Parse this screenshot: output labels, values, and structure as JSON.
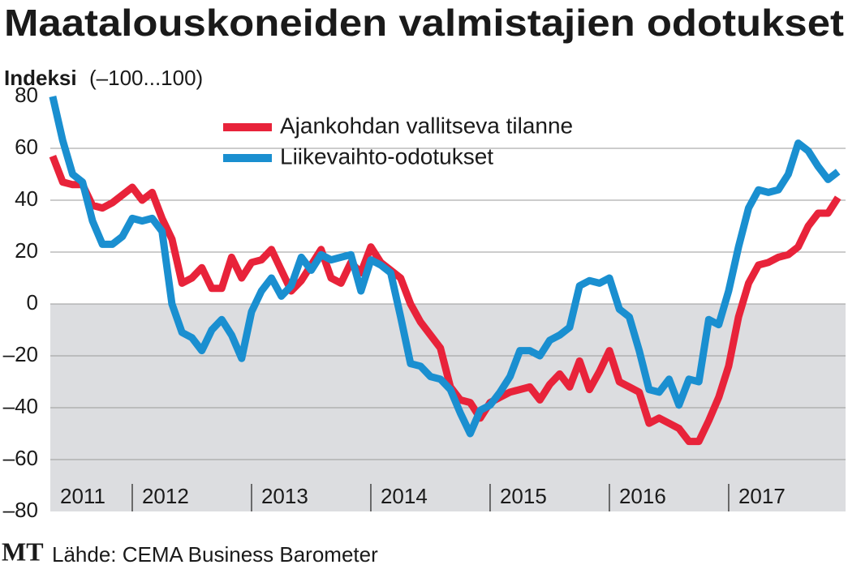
{
  "chart_data": {
    "type": "line",
    "title": "Maatalouskoneiden valmistajien odotukset",
    "y_label": "Indeksi",
    "y_label_note": "(–100...100)",
    "source": "Lähde: CEMA Business Barometer",
    "logo": "MT",
    "x": [
      2011.333,
      2011.417,
      2011.5,
      2011.583,
      2011.667,
      2011.75,
      2011.833,
      2011.917,
      2012,
      2012.083,
      2012.167,
      2012.25,
      2012.333,
      2012.417,
      2012.5,
      2012.583,
      2012.667,
      2012.75,
      2012.833,
      2012.917,
      2013,
      2013.083,
      2013.167,
      2013.25,
      2013.333,
      2013.417,
      2013.5,
      2013.583,
      2013.667,
      2013.75,
      2013.833,
      2013.917,
      2014,
      2014.083,
      2014.167,
      2014.25,
      2014.333,
      2014.417,
      2014.5,
      2014.583,
      2014.667,
      2014.75,
      2014.833,
      2014.917,
      2015,
      2015.083,
      2015.167,
      2015.25,
      2015.333,
      2015.417,
      2015.5,
      2015.583,
      2015.667,
      2015.75,
      2015.833,
      2015.917,
      2016,
      2016.083,
      2016.167,
      2016.25,
      2016.333,
      2016.417,
      2016.5,
      2016.583,
      2016.667,
      2016.75,
      2016.833,
      2016.917,
      2017,
      2017.083,
      2017.167,
      2017.25,
      2017.333,
      2017.417,
      2017.5,
      2017.583,
      2017.667,
      2017.75,
      2017.833,
      2017.917
    ],
    "series": [
      {
        "name": "Ajankohdan vallitseva tilanne",
        "color": "#e8233a",
        "values": [
          57,
          47,
          46,
          46,
          38,
          37,
          39,
          42,
          45,
          40,
          43,
          33,
          25,
          8,
          10,
          14,
          6,
          6,
          18,
          10,
          16,
          17,
          21,
          13,
          5,
          9,
          15,
          21,
          10,
          8,
          16,
          12,
          22,
          16,
          13,
          10,
          0,
          -7,
          -12,
          -17,
          -32,
          -37,
          -38,
          -44,
          -38,
          -36,
          -34,
          -33,
          -32,
          -37,
          -31,
          -27,
          -32,
          -22,
          -33,
          -26,
          -18,
          -30,
          -32,
          -34,
          -46,
          -44,
          -46,
          -48,
          -53,
          -53,
          -45,
          -36,
          -24,
          -5,
          8,
          15,
          16,
          18,
          19,
          22,
          30,
          35,
          35,
          41
        ]
      },
      {
        "name": "Liikevaihto-odotukset",
        "color": "#1a8fd0",
        "values": [
          80,
          63,
          50,
          47,
          32,
          23,
          23,
          26,
          33,
          32,
          33,
          28,
          0,
          -11,
          -13,
          -18,
          -10,
          -6,
          -12,
          -21,
          -3,
          5,
          10,
          3,
          7,
          18,
          13,
          19,
          17,
          18,
          19,
          5,
          17,
          15,
          12,
          -5,
          -23,
          -24,
          -28,
          -29,
          -33,
          -42,
          -50,
          -41,
          -39,
          -34,
          -28,
          -18,
          -18,
          -20,
          -14,
          -12,
          -9,
          7,
          9,
          8,
          10,
          -2,
          -5,
          -18,
          -33,
          -34,
          -29,
          -39,
          -29,
          -30,
          -6,
          -8,
          5,
          22,
          37,
          44,
          43,
          44,
          50,
          62,
          59,
          53,
          48,
          51
        ]
      }
    ],
    "xlim": [
      2011.313,
      2017.98
    ],
    "xticks": [
      {
        "value": 2011,
        "label": "2011"
      },
      {
        "value": 2012,
        "label": "2012"
      },
      {
        "value": 2013,
        "label": "2013"
      },
      {
        "value": 2014,
        "label": "2014"
      },
      {
        "value": 2015,
        "label": "2015"
      },
      {
        "value": 2016,
        "label": "2016"
      },
      {
        "value": 2017,
        "label": "2017"
      }
    ],
    "ylim": [
      -80,
      80
    ],
    "yticks": [
      {
        "value": -80,
        "label": "–80"
      },
      {
        "value": -60,
        "label": "–60"
      },
      {
        "value": -40,
        "label": "–40"
      },
      {
        "value": -20,
        "label": "–20"
      },
      0,
      20,
      40,
      60,
      80
    ],
    "grid": true,
    "negative_shading": "#dcdde0"
  }
}
